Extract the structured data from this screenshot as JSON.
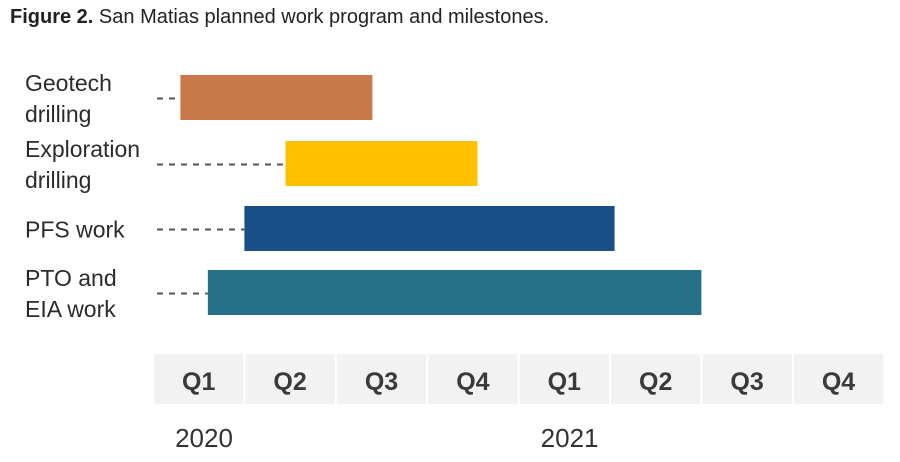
{
  "caption": {
    "prefix": "Figure 2.",
    "text": "San Matias planned work program and milestones."
  },
  "chart_data": {
    "type": "gantt",
    "x_unit": "quarters from start of 2020",
    "xlim": [
      0,
      8
    ],
    "quarters": [
      "Q1",
      "Q2",
      "Q3",
      "Q4",
      "Q1",
      "Q2",
      "Q3",
      "Q4"
    ],
    "years": [
      {
        "label": "2020",
        "quarter_index": 0
      },
      {
        "label": "2021",
        "quarter_index": 4
      }
    ],
    "tasks": [
      {
        "name": "Geotech drilling",
        "lines": [
          "Geotech",
          "drilling"
        ],
        "start": 0.3,
        "end": 2.4,
        "color": "#C9784A"
      },
      {
        "name": "Exploration drilling",
        "lines": [
          "Exploration",
          "drilling"
        ],
        "start": 1.45,
        "end": 3.55,
        "color": "#FFC000"
      },
      {
        "name": "PFS work",
        "lines": [
          "PFS work"
        ],
        "start": 1.0,
        "end": 5.05,
        "color": "#174F86"
      },
      {
        "name": "PTO and EIA work",
        "lines": [
          "PTO and",
          "EIA work"
        ],
        "start": 0.6,
        "end": 6.0,
        "color": "#27708A"
      }
    ]
  }
}
